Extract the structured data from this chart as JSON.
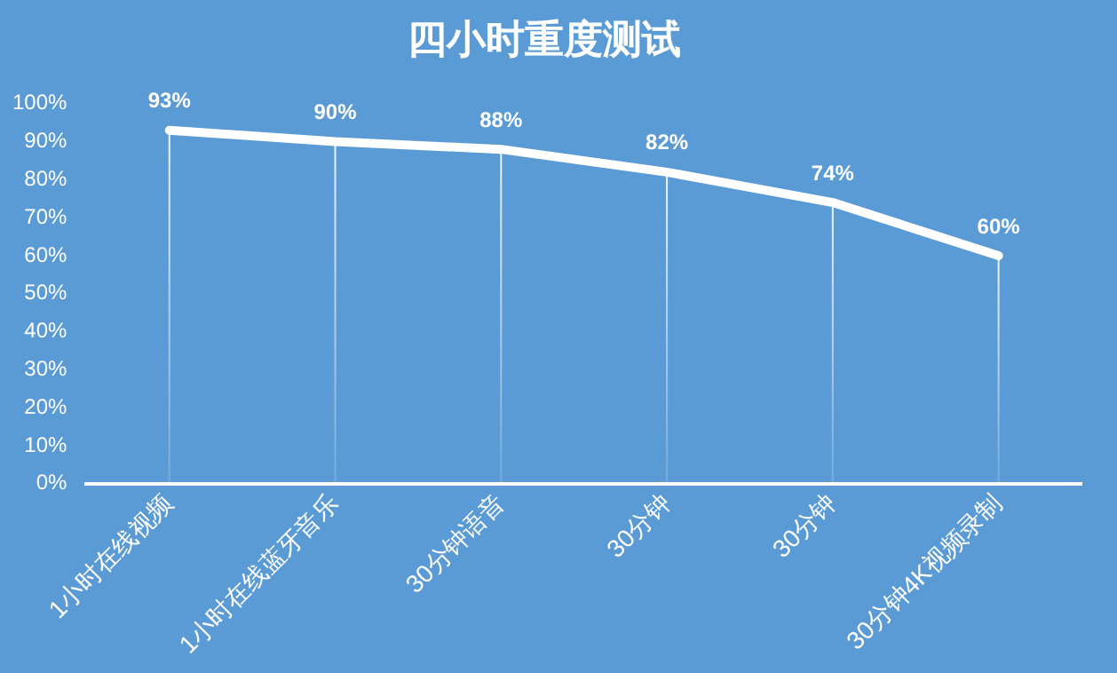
{
  "chart_data": {
    "type": "line",
    "title": "四小时重度测试",
    "categories": [
      "1小时在线视频",
      "1小时在线蓝牙音乐",
      "30分钟语音",
      "30分钟",
      "30分钟",
      "30分钟4K视频录制"
    ],
    "series": [
      {
        "color": "#ffffff",
        "values": [
          93,
          90,
          88,
          82,
          74,
          60
        ],
        "value_labels": [
          "93%",
          "90%",
          "88%",
          "82%",
          "74%",
          "60%"
        ]
      }
    ],
    "ylim": [
      0,
      100
    ],
    "yticks": [
      {
        "value": 0,
        "label": "0%"
      },
      {
        "value": 10,
        "label": "10%"
      },
      {
        "value": 20,
        "label": "20%"
      },
      {
        "value": 30,
        "label": "30%"
      },
      {
        "value": 40,
        "label": "40%"
      },
      {
        "value": 50,
        "label": "50%"
      },
      {
        "value": 60,
        "label": "60%"
      },
      {
        "value": 70,
        "label": "70%"
      },
      {
        "value": 80,
        "label": "80%"
      },
      {
        "value": 90,
        "label": "90%"
      },
      {
        "value": 100,
        "label": "100%"
      }
    ],
    "grid": "x",
    "legend": false,
    "marker": "none",
    "line_style": "solid"
  }
}
